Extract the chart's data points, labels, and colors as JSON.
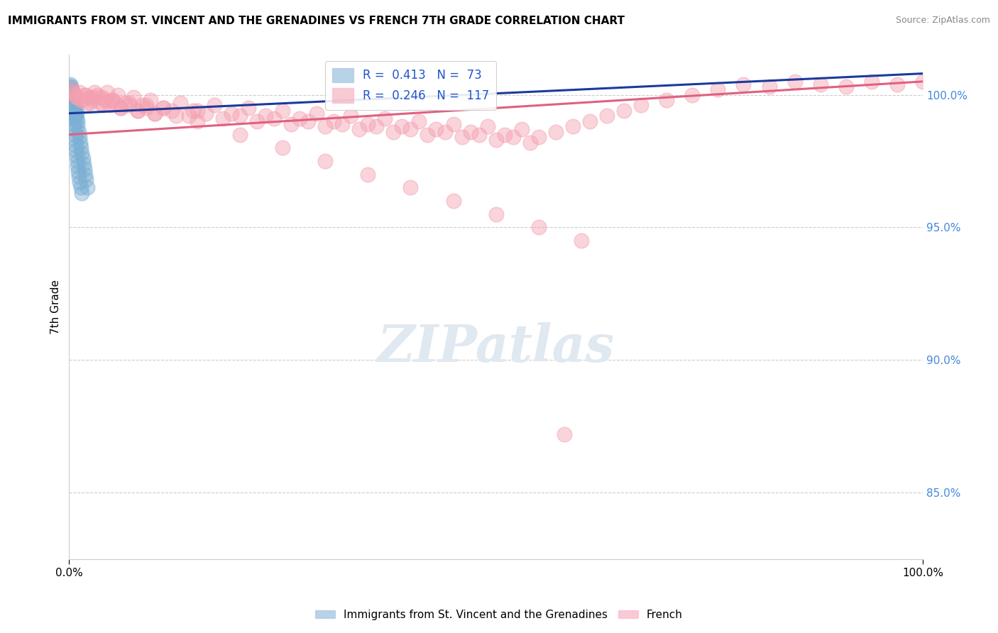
{
  "title": "IMMIGRANTS FROM ST. VINCENT AND THE GRENADINES VS FRENCH 7TH GRADE CORRELATION CHART",
  "source": "Source: ZipAtlas.com",
  "ylabel": "7th Grade",
  "xlim": [
    0.0,
    100.0
  ],
  "ylim": [
    82.5,
    101.5
  ],
  "ytick_vals": [
    85.0,
    90.0,
    95.0,
    100.0
  ],
  "ytick_labels": [
    "85.0%",
    "90.0%",
    "95.0%",
    "100.0%"
  ],
  "xtick_vals": [
    0.0,
    100.0
  ],
  "xtick_labels": [
    "0.0%",
    "100.0%"
  ],
  "legend_entries": [
    {
      "label": "R =  0.413   N =  73",
      "color": "#7BAFD4"
    },
    {
      "label": "R =  0.246   N =  117",
      "color": "#F4A0B0"
    }
  ],
  "bottom_legend": [
    "Immigrants from St. Vincent and the Grenadines",
    "French"
  ],
  "blue_color": "#7BAFD4",
  "pink_color": "#F4A0B0",
  "blue_line_color": "#1A3A9C",
  "pink_line_color": "#E06080",
  "blue_trend": [
    99.3,
    100.8
  ],
  "pink_trend": [
    98.5,
    100.5
  ],
  "watermark_text": "ZIPatlas",
  "watermark_color": "#E0E8F0",
  "grid_color": "#CCCCCC",
  "title_fontsize": 11,
  "source_fontsize": 9,
  "tick_fontsize": 11,
  "legend_fontsize": 12,
  "blue_x": [
    0.05,
    0.08,
    0.1,
    0.12,
    0.15,
    0.18,
    0.2,
    0.22,
    0.25,
    0.28,
    0.3,
    0.32,
    0.35,
    0.38,
    0.4,
    0.42,
    0.45,
    0.48,
    0.5,
    0.55,
    0.6,
    0.65,
    0.7,
    0.75,
    0.8,
    0.85,
    0.9,
    0.95,
    1.0,
    1.1,
    1.2,
    1.3,
    1.4,
    1.5,
    1.6,
    1.7,
    1.8,
    1.9,
    2.0,
    2.1,
    0.07,
    0.09,
    0.11,
    0.13,
    0.16,
    0.19,
    0.21,
    0.23,
    0.26,
    0.29,
    0.31,
    0.33,
    0.36,
    0.39,
    0.41,
    0.43,
    0.46,
    0.49,
    0.52,
    0.58,
    0.63,
    0.68,
    0.73,
    0.78,
    0.83,
    0.88,
    0.93,
    0.98,
    1.05,
    1.15,
    1.25,
    1.35,
    1.45
  ],
  "blue_y": [
    100.3,
    100.1,
    100.4,
    100.2,
    100.0,
    99.9,
    100.1,
    100.3,
    99.8,
    100.2,
    100.0,
    99.7,
    99.9,
    100.1,
    99.6,
    99.8,
    100.0,
    99.5,
    99.7,
    99.4,
    99.6,
    99.3,
    99.5,
    99.2,
    99.4,
    99.1,
    99.3,
    99.0,
    98.8,
    98.6,
    98.4,
    98.2,
    98.0,
    97.8,
    97.6,
    97.4,
    97.2,
    97.0,
    96.8,
    96.5,
    100.2,
    100.0,
    99.9,
    100.1,
    99.8,
    100.0,
    99.7,
    99.9,
    99.6,
    99.8,
    99.5,
    99.7,
    99.4,
    99.6,
    99.3,
    99.5,
    99.2,
    99.4,
    99.1,
    98.9,
    98.7,
    98.5,
    98.3,
    98.1,
    97.9,
    97.7,
    97.5,
    97.3,
    97.1,
    96.9,
    96.7,
    96.5,
    96.3
  ],
  "pink_x": [
    0.3,
    0.6,
    0.9,
    1.2,
    1.5,
    1.8,
    2.1,
    2.4,
    2.7,
    3.0,
    3.3,
    3.6,
    3.9,
    4.2,
    4.5,
    4.8,
    5.1,
    5.4,
    5.7,
    6.0,
    6.5,
    7.0,
    7.5,
    8.0,
    8.5,
    9.0,
    9.5,
    10.0,
    11.0,
    12.0,
    13.0,
    14.0,
    15.0,
    16.0,
    17.0,
    18.0,
    19.0,
    20.0,
    21.0,
    22.0,
    23.0,
    24.0,
    25.0,
    26.0,
    27.0,
    28.0,
    29.0,
    30.0,
    31.0,
    32.0,
    33.0,
    34.0,
    35.0,
    36.0,
    37.0,
    38.0,
    39.0,
    40.0,
    41.0,
    42.0,
    43.0,
    44.0,
    45.0,
    46.0,
    47.0,
    48.0,
    49.0,
    50.0,
    51.0,
    52.0,
    53.0,
    54.0,
    55.0,
    57.0,
    59.0,
    61.0,
    63.0,
    65.0,
    67.0,
    70.0,
    73.0,
    76.0,
    79.0,
    82.0,
    85.0,
    88.0,
    91.0,
    94.0,
    97.0,
    100.0,
    0.5,
    1.0,
    1.5,
    2.0,
    2.5,
    3.0,
    4.0,
    5.0,
    6.0,
    7.0,
    8.0,
    9.0,
    10.0,
    11.0,
    12.5,
    14.5,
    58.0,
    15.0,
    20.0,
    25.0,
    30.0,
    35.0,
    40.0,
    45.0,
    50.0,
    55.0,
    60.0
  ],
  "pink_y": [
    100.2,
    100.0,
    99.9,
    100.1,
    99.8,
    100.0,
    99.7,
    99.9,
    99.8,
    100.1,
    100.0,
    99.7,
    99.9,
    99.8,
    100.1,
    99.6,
    99.8,
    99.7,
    100.0,
    99.5,
    99.7,
    99.6,
    99.9,
    99.4,
    99.6,
    99.5,
    99.8,
    99.3,
    99.5,
    99.4,
    99.7,
    99.2,
    99.4,
    99.3,
    99.6,
    99.1,
    99.3,
    99.2,
    99.5,
    99.0,
    99.2,
    99.1,
    99.4,
    98.9,
    99.1,
    99.0,
    99.3,
    98.8,
    99.0,
    98.9,
    99.2,
    98.7,
    98.9,
    98.8,
    99.1,
    98.6,
    98.8,
    98.7,
    99.0,
    98.5,
    98.7,
    98.6,
    98.9,
    98.4,
    98.6,
    98.5,
    98.8,
    98.3,
    98.5,
    98.4,
    98.7,
    98.2,
    98.4,
    98.6,
    98.8,
    99.0,
    99.2,
    99.4,
    99.6,
    99.8,
    100.0,
    100.2,
    100.4,
    100.3,
    100.5,
    100.4,
    100.3,
    100.5,
    100.4,
    100.5,
    100.1,
    99.9,
    99.8,
    100.0,
    99.7,
    99.9,
    99.6,
    99.8,
    99.5,
    99.7,
    99.4,
    99.6,
    99.3,
    99.5,
    99.2,
    99.4,
    87.2,
    99.0,
    98.5,
    98.0,
    97.5,
    97.0,
    96.5,
    96.0,
    95.5,
    95.0,
    94.5
  ]
}
